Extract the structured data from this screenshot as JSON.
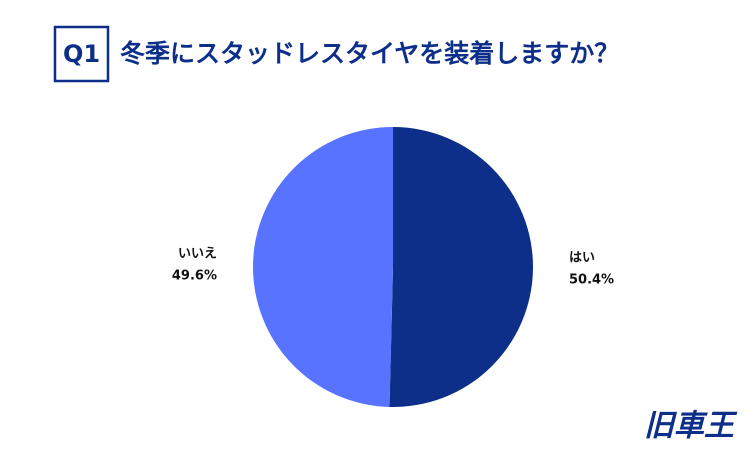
{
  "chart_data": {
    "type": "pie",
    "question_number": "Q1",
    "title": "冬季にスタッドレスタイヤを装着しますか？",
    "categories": [
      "はい",
      "いいえ"
    ],
    "values": [
      50.4,
      49.6
    ],
    "value_labels": [
      "50.4%",
      "49.6%"
    ],
    "colors": [
      "#0d2f8a",
      "#5773ff"
    ],
    "start_angle": 0,
    "direction": "clockwise",
    "logo": "旧車王"
  }
}
